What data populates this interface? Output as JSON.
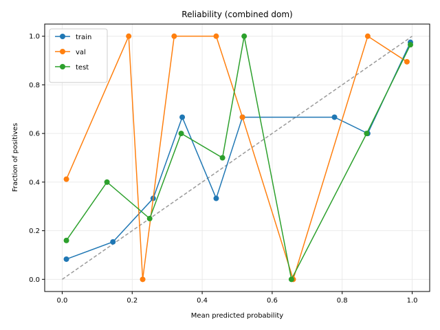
{
  "chart_data": {
    "type": "line",
    "title": "Reliability (combined dom)",
    "xlabel": "Mean predicted probability",
    "ylabel": "Fraction of positives",
    "xlim": [
      -0.05,
      1.05
    ],
    "ylim": [
      -0.05,
      1.05
    ],
    "xticks": [
      0.0,
      0.2,
      0.4,
      0.6,
      0.8,
      1.0
    ],
    "xtick_labels": [
      "0.0",
      "0.2",
      "0.4",
      "0.6",
      "0.8",
      "1.0"
    ],
    "yticks": [
      0.0,
      0.2,
      0.4,
      0.6,
      0.8,
      1.0
    ],
    "ytick_labels": [
      "0.0",
      "0.2",
      "0.4",
      "0.6",
      "0.8",
      "1.0"
    ],
    "grid": true,
    "legend_position": "upper-left",
    "reference_line": {
      "x": [
        0.0,
        1.0
      ],
      "y": [
        0.0,
        1.0
      ],
      "color": "#999999",
      "style": "dashed"
    },
    "series": [
      {
        "name": "train",
        "color": "#1f77b4",
        "x": [
          0.012,
          0.145,
          0.26,
          0.343,
          0.44,
          0.515,
          0.778,
          0.873,
          0.995
        ],
        "y": [
          0.083,
          0.154,
          0.333,
          0.667,
          0.333,
          0.667,
          0.667,
          0.6,
          0.975
        ]
      },
      {
        "name": "val",
        "color": "#ff7f0e",
        "x": [
          0.012,
          0.19,
          0.23,
          0.32,
          0.44,
          0.515,
          0.66,
          0.873,
          0.985
        ],
        "y": [
          0.412,
          1.0,
          0.0,
          1.0,
          1.0,
          0.667,
          0.0,
          1.0,
          0.895
        ]
      },
      {
        "name": "test",
        "color": "#2ca02c",
        "x": [
          0.012,
          0.128,
          0.25,
          0.34,
          0.458,
          0.52,
          0.655,
          0.87,
          0.995
        ],
        "y": [
          0.16,
          0.4,
          0.25,
          0.6,
          0.5,
          1.0,
          0.0,
          0.6,
          0.965
        ]
      }
    ]
  }
}
